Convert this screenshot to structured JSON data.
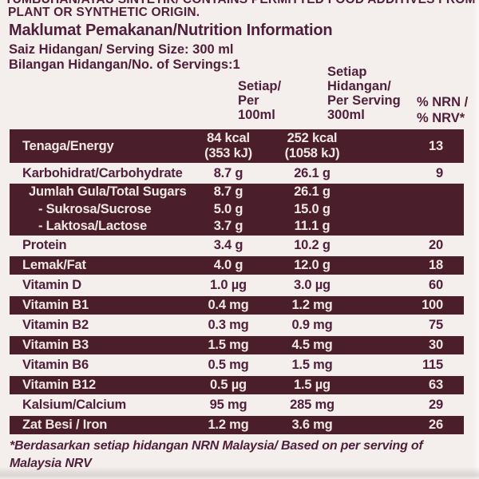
{
  "colors": {
    "background": "#f4efed",
    "ink": "#50203a",
    "bar": "#4b1e2b",
    "bar_text": "#f1e8e3"
  },
  "header": {
    "clipped_line": "TUMBUHAN/ATAU SINTETIK/ CONTAINS PERMITTED FOOD ADDITIVES FROM",
    "origin_line": "PLANT OR SYNTHETIC ORIGIN.",
    "title": "Maklumat Pemakanan/Nutrition Information",
    "serving_size": "Saiz Hidangan/ Serving Size: 300 ml",
    "servings_count": "Bilangan Hidangan/No. of Servings:1"
  },
  "table": {
    "column_headers": {
      "per_100ml": [
        "Setiap/",
        "Per",
        "100ml"
      ],
      "per_serving": [
        "Setiap",
        "Hidangan/",
        "Per Serving",
        "300ml"
      ],
      "nrv": [
        "% NRN /",
        "% NRV*"
      ]
    },
    "rows": [
      {
        "label": "Tenaga/Energy",
        "per_100ml": [
          "84 kcal",
          "(353 kJ)"
        ],
        "per_serving": [
          "252 kcal",
          "(1058 kJ)"
        ],
        "nrv": "13",
        "theme": "dark",
        "tall": true
      },
      {
        "label": "Karbohidrat/Carbohydrate",
        "per_100ml": "8.7 g",
        "per_serving": "26.1 g",
        "nrv": "9",
        "theme": "light"
      },
      {
        "label": "Jumlah Gula/Total Sugars",
        "per_100ml": "8.7 g",
        "per_serving": "26.1 g",
        "nrv": "",
        "theme": "dark",
        "group": true,
        "inset": true
      },
      {
        "label": "- Sukrosa/Sucrose",
        "per_100ml": "5.0 g",
        "per_serving": "15.0 g",
        "nrv": "",
        "theme": "dark",
        "group": true,
        "indent": true
      },
      {
        "label": "- Laktosa/Lactose",
        "per_100ml": "3.7 g",
        "per_serving": "11.1 g",
        "nrv": "",
        "theme": "dark",
        "group": true,
        "indent": true
      },
      {
        "label": "Protein",
        "per_100ml": "3.4 g",
        "per_serving": "10.2 g",
        "nrv": "20",
        "theme": "light"
      },
      {
        "label": "Lemak/Fat",
        "per_100ml": "4.0 g",
        "per_serving": "12.0 g",
        "nrv": "18",
        "theme": "dark"
      },
      {
        "label": "Vitamin D",
        "per_100ml": "1.0 µg",
        "per_serving": "3.0 µg",
        "nrv": "60",
        "theme": "light"
      },
      {
        "label": "Vitamin B1",
        "per_100ml": "0.4 mg",
        "per_serving": "1.2 mg",
        "nrv": "100",
        "theme": "dark"
      },
      {
        "label": "Vitamin B2",
        "per_100ml": "0.3 mg",
        "per_serving": "0.9 mg",
        "nrv": "75",
        "theme": "light"
      },
      {
        "label": "Vitamin B3",
        "per_100ml": "1.5 mg",
        "per_serving": "4.5 mg",
        "nrv": "30",
        "theme": "dark"
      },
      {
        "label": "Vitamin B6",
        "per_100ml": "0.5 mg",
        "per_serving": "1.5 mg",
        "nrv": "115",
        "theme": "light"
      },
      {
        "label": "Vitamin B12",
        "per_100ml": "0.5 µg",
        "per_serving": "1.5 µg",
        "nrv": "63",
        "theme": "dark"
      },
      {
        "label": "Kalsium/Calcium",
        "per_100ml": "95 mg",
        "per_serving": "285 mg",
        "nrv": "29",
        "theme": "light"
      },
      {
        "label": "Zat Besi / Iron",
        "per_100ml": "1.2 mg",
        "per_serving": "3.6 mg",
        "nrv": "26",
        "theme": "dark"
      }
    ]
  },
  "footnote": {
    "line1": "*Berdasarkan setiap hidangan NRN Malaysia/ Based on per serving of",
    "line2": "Malaysia NRV"
  }
}
